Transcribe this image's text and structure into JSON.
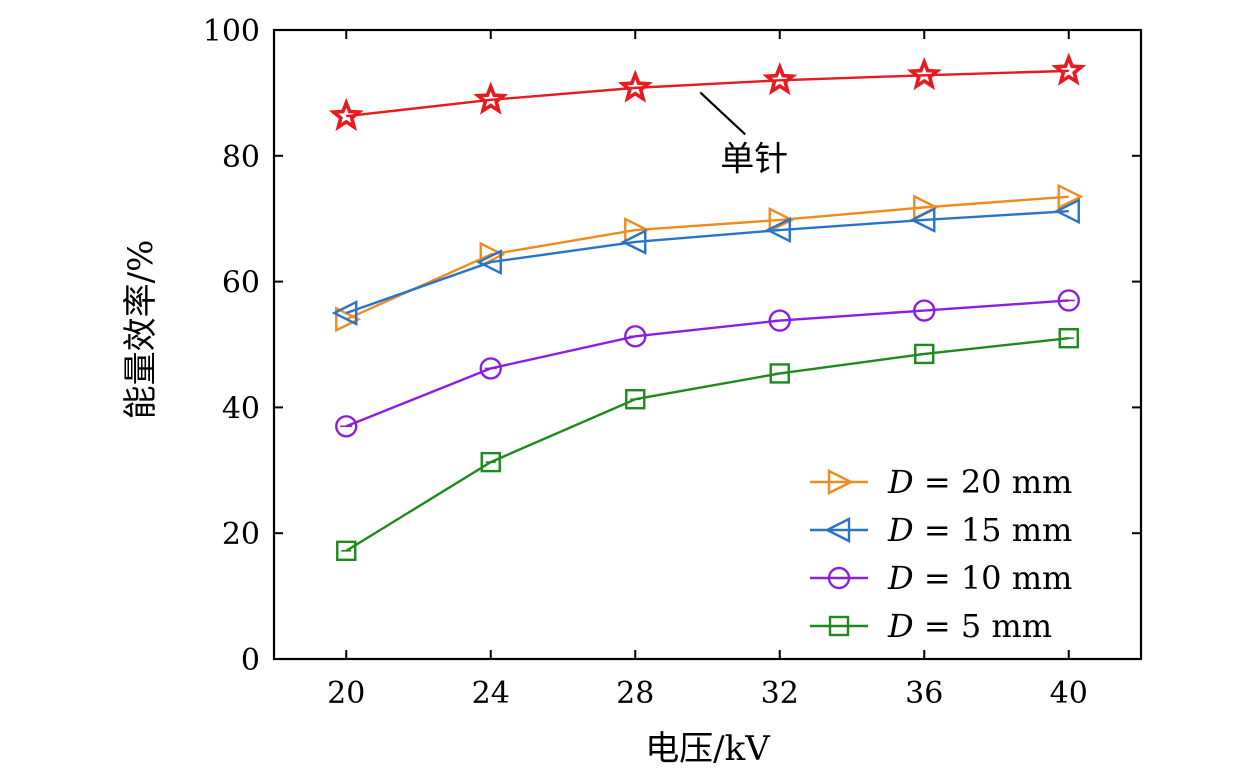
{
  "chart_data": {
    "type": "line",
    "xlabel": "电压/kV",
    "ylabel": "能量效率/%",
    "x": [
      20,
      24,
      28,
      32,
      36,
      40
    ],
    "xlim": [
      18,
      42
    ],
    "ylim": [
      0,
      100
    ],
    "xticks": [
      20,
      24,
      28,
      32,
      36,
      40
    ],
    "yticks": [
      0,
      20,
      40,
      60,
      80,
      100
    ],
    "legend_position": "bottom-right",
    "series": [
      {
        "name": "单针",
        "marker": "star",
        "color": "#e8191f",
        "values": [
          86.3,
          88.9,
          90.8,
          92.0,
          92.8,
          93.5
        ],
        "in_legend": false
      },
      {
        "name": "D = 20 mm",
        "label_var": "D",
        "label_rest": " = 20 mm",
        "marker": "triangle-right",
        "color": "#f08c1e",
        "values": [
          54.0,
          64.3,
          68.2,
          69.8,
          71.8,
          73.5
        ],
        "in_legend": true
      },
      {
        "name": "D = 15 mm",
        "label_var": "D",
        "label_rest": " = 15 mm",
        "marker": "triangle-left",
        "color": "#2a74c8",
        "values": [
          55.0,
          63.1,
          66.3,
          68.2,
          69.8,
          71.2
        ],
        "in_legend": true
      },
      {
        "name": "D = 10 mm",
        "label_var": "D",
        "label_rest": " = 10 mm",
        "marker": "circle",
        "color": "#8a1fe0",
        "values": [
          37.0,
          46.2,
          51.3,
          53.8,
          55.4,
          57.0
        ],
        "in_legend": true
      },
      {
        "name": "D = 5 mm",
        "label_var": "D",
        "label_rest": " = 5 mm",
        "marker": "square",
        "color": "#1e8a1e",
        "values": [
          17.2,
          31.3,
          41.3,
          45.4,
          48.5,
          51.0
        ],
        "in_legend": true
      }
    ],
    "annotation": {
      "text": "单针",
      "series": "单针",
      "target_x": 29.8
    }
  }
}
